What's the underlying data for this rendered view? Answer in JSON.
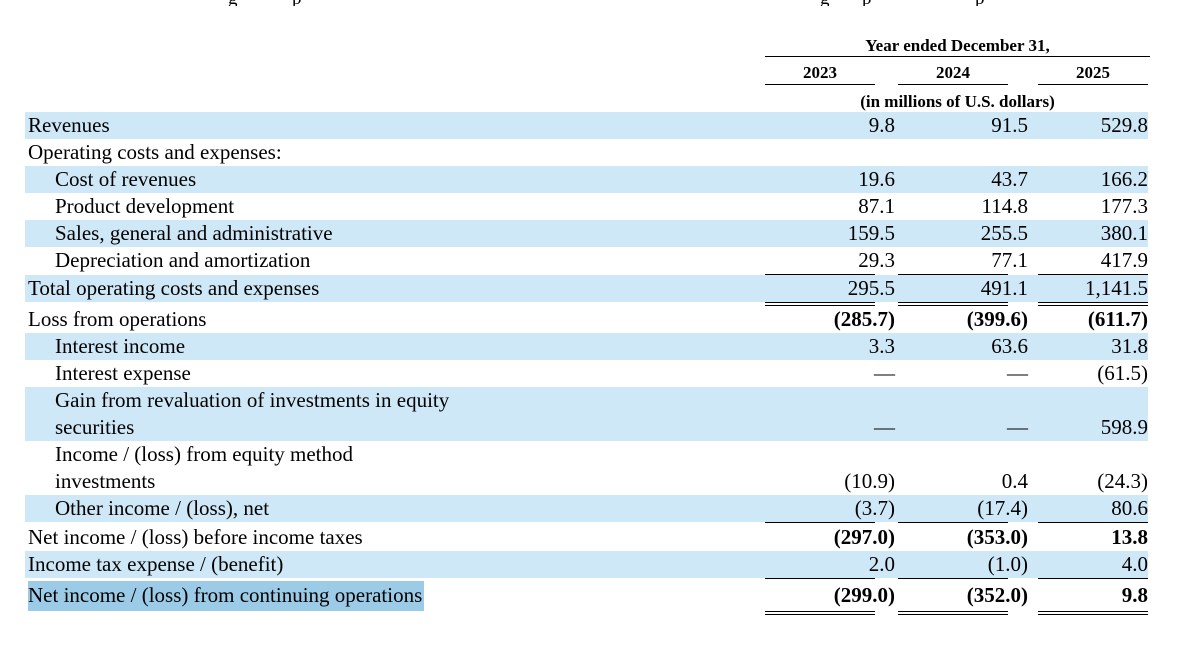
{
  "cutoff_text": [
    "g",
    "p",
    "g",
    "p",
    "p"
  ],
  "header": {
    "title": "Year ended December 31,",
    "years": [
      "2023",
      "2024",
      "2025"
    ],
    "units": "(in millions of U.S. dollars)"
  },
  "rows": [
    {
      "label": "Revenues",
      "values": [
        "9.8",
        "91.5",
        "529.8"
      ]
    },
    {
      "label": "Operating costs and expenses:",
      "values": [
        "",
        "",
        ""
      ]
    },
    {
      "label": "Cost of revenues",
      "values": [
        "19.6",
        "43.7",
        "166.2"
      ]
    },
    {
      "label": "Product development",
      "values": [
        "87.1",
        "114.8",
        "177.3"
      ]
    },
    {
      "label": "Sales, general and administrative",
      "values": [
        "159.5",
        "255.5",
        "380.1"
      ]
    },
    {
      "label": "Depreciation and amortization",
      "values": [
        "29.3",
        "77.1",
        "417.9"
      ]
    },
    {
      "label": "Total operating costs and expenses",
      "values": [
        "295.5",
        "491.1",
        "1,141.5"
      ]
    },
    {
      "label": "Loss from operations",
      "values": [
        "(285.7)",
        "(399.6)",
        "(611.7)"
      ]
    },
    {
      "label": "Interest income",
      "values": [
        "3.3",
        "63.6",
        "31.8"
      ]
    },
    {
      "label": "Interest expense",
      "values": [
        "—",
        "—",
        "(61.5)"
      ]
    },
    {
      "label": "Gain from revaluation of investments in equity securities",
      "values": [
        "—",
        "—",
        "598.9"
      ]
    },
    {
      "label": "Income / (loss) from equity method investments",
      "values": [
        "(10.9)",
        "0.4",
        "(24.3)"
      ]
    },
    {
      "label": "Other income / (loss), net",
      "values": [
        "(3.7)",
        "(17.4)",
        "80.6"
      ]
    },
    {
      "label": "Net income / (loss) before income taxes",
      "values": [
        "(297.0)",
        "(353.0)",
        "13.8"
      ]
    },
    {
      "label": "Income tax expense / (benefit)",
      "values": [
        "2.0",
        "(1.0)",
        "4.0"
      ]
    },
    {
      "label": "Net income / (loss) from continuing operations",
      "values": [
        "(299.0)",
        "(352.0)",
        "9.8"
      ]
    }
  ]
}
